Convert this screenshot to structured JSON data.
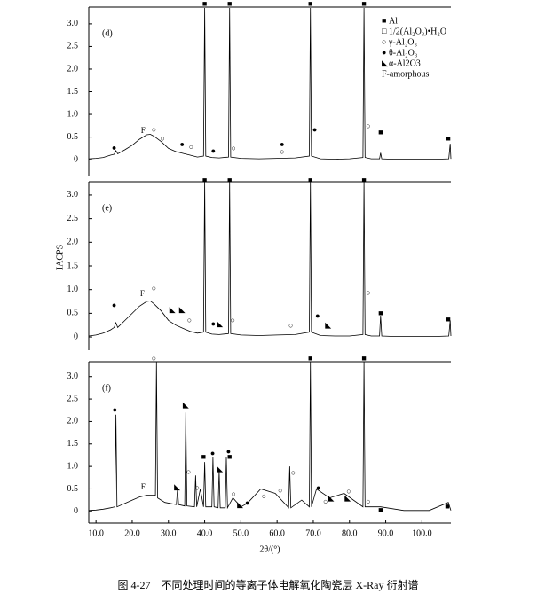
{
  "caption": "图 4-27　不同处理时间的等离子体电解氧化陶瓷层 X-Ray 衍射谱",
  "chart_data": [
    {
      "type": "line",
      "label": "(d)",
      "color": "#000000",
      "xlim": [
        8,
        108
      ],
      "ylim": [
        -0.35,
        3.37
      ],
      "yticks": [
        0,
        0.5,
        {
          "value": 1,
          "label": "1.0"
        },
        1.5,
        {
          "value": 2,
          "label": "2.0"
        },
        2.5,
        {
          "value": 3,
          "label": "3.0"
        }
      ],
      "x": [
        8,
        10,
        12,
        14,
        15,
        15.5,
        16,
        18,
        20,
        22,
        24,
        25,
        26,
        28,
        30,
        32,
        34,
        36,
        38,
        39.7,
        40,
        40.3,
        42,
        44,
        46.6,
        46.9,
        47.2,
        50,
        55,
        60,
        65,
        68.9,
        69.2,
        69.5,
        72,
        76,
        80,
        83.7,
        84,
        84.3,
        86,
        88.3,
        88.6,
        88.9,
        92,
        96,
        100,
        104,
        107.4,
        107.8,
        108
      ],
      "values": [
        0.02,
        0.03,
        0.05,
        0.1,
        0.12,
        0.2,
        0.13,
        0.22,
        0.32,
        0.45,
        0.55,
        0.56,
        0.52,
        0.4,
        0.25,
        0.18,
        0.14,
        0.1,
        0.06,
        0.08,
        3.35,
        0.08,
        0.05,
        0.04,
        0.06,
        3.35,
        0.06,
        0.03,
        0.02,
        0.03,
        0.04,
        0.08,
        3.35,
        0.08,
        0.02,
        0.01,
        0.02,
        0.05,
        3.35,
        0.05,
        0.02,
        0.02,
        0.15,
        0.02,
        0.01,
        0.01,
        0.01,
        0.01,
        0.02,
        0.35,
        0.02
      ],
      "annotations": [
        {
          "text": "■",
          "x": 40,
          "y": 3.43
        },
        {
          "text": "■",
          "x": 46.9,
          "y": 3.43
        },
        {
          "text": "■",
          "x": 69.2,
          "y": 3.43
        },
        {
          "text": "■",
          "x": 84,
          "y": 3.43
        },
        {
          "text": "●",
          "x": 15,
          "y": 0.25
        },
        {
          "text": "F",
          "x": 23,
          "y": 0.63
        },
        {
          "text": "○",
          "x": 26,
          "y": 0.65
        },
        {
          "text": "○",
          "x": 28.4,
          "y": 0.45
        },
        {
          "text": "●",
          "x": 33.8,
          "y": 0.33
        },
        {
          "text": "○",
          "x": 36.3,
          "y": 0.27
        },
        {
          "text": "●",
          "x": 42.4,
          "y": 0.18
        },
        {
          "text": "○",
          "x": 48,
          "y": 0.24
        },
        {
          "text": "●",
          "x": 61.4,
          "y": 0.33
        },
        {
          "text": "○",
          "x": 61.4,
          "y": 0.16
        },
        {
          "text": "●",
          "x": 70.4,
          "y": 0.65
        },
        {
          "text": "○",
          "x": 85.2,
          "y": 0.73
        },
        {
          "text": "■",
          "x": 88.6,
          "y": 0.59
        },
        {
          "text": "■",
          "x": 107.3,
          "y": 0.45
        }
      ],
      "legend": [
        {
          "symbol": "■",
          "label": "Al"
        },
        {
          "symbol": "□",
          "label": "1/2(Al₂O₃)•H₂O"
        },
        {
          "symbol": "○",
          "label": "γ-Al₂O₃"
        },
        {
          "symbol": "●",
          "label": "θ-Al₂O₃"
        },
        {
          "symbol": "◣",
          "label": "α-Al2O3"
        },
        {
          "symbol": "",
          "label": "F-amorphous"
        }
      ]
    },
    {
      "type": "line",
      "label": "(e)",
      "color": "#000000",
      "y_label": "IACPS",
      "xlim": [
        8,
        108
      ],
      "ylim": [
        -0.28,
        3.28
      ],
      "yticks": [
        0,
        0.5,
        {
          "value": 1,
          "label": "1.0"
        },
        1.5,
        {
          "value": 2,
          "label": "2.0"
        },
        2.5,
        {
          "value": 3,
          "label": "3.0"
        }
      ],
      "x": [
        8,
        10,
        12,
        14,
        15,
        15.5,
        16,
        18,
        20,
        22,
        24,
        25,
        26,
        28,
        30,
        32,
        34,
        36,
        38,
        39.7,
        40,
        40.3,
        42,
        44,
        46.6,
        46.9,
        47.2,
        50,
        55,
        60,
        65,
        68.9,
        69.2,
        69.5,
        72,
        76,
        80,
        83.7,
        84,
        84.3,
        86,
        88.3,
        88.6,
        88.9,
        92,
        96,
        100,
        104,
        107.4,
        107.8,
        108
      ],
      "values": [
        0.02,
        0.04,
        0.08,
        0.15,
        0.2,
        0.3,
        0.2,
        0.35,
        0.5,
        0.65,
        0.75,
        0.76,
        0.7,
        0.55,
        0.35,
        0.25,
        0.18,
        0.12,
        0.08,
        0.1,
        3.3,
        0.1,
        0.06,
        0.05,
        0.07,
        3.3,
        0.07,
        0.04,
        0.03,
        0.04,
        0.05,
        0.1,
        3.3,
        0.1,
        0.03,
        0.02,
        0.02,
        0.05,
        3.3,
        0.05,
        0.02,
        0.02,
        0.45,
        0.02,
        0.01,
        0.01,
        0.01,
        0.01,
        0.02,
        0.35,
        0.02
      ],
      "annotations": [
        {
          "text": "■",
          "x": 40,
          "y": 3.3
        },
        {
          "text": "■",
          "x": 46.9,
          "y": 3.3
        },
        {
          "text": "■",
          "x": 69.2,
          "y": 3.3
        },
        {
          "text": "■",
          "x": 84,
          "y": 3.3
        },
        {
          "text": "●",
          "x": 15,
          "y": 0.66
        },
        {
          "text": "F",
          "x": 22.8,
          "y": 0.9
        },
        {
          "text": "○",
          "x": 26,
          "y": 1.01
        },
        {
          "text": "◣",
          "x": 31.1,
          "y": 0.56
        },
        {
          "text": "◣",
          "x": 33.8,
          "y": 0.56
        },
        {
          "text": "○",
          "x": 35.8,
          "y": 0.34
        },
        {
          "text": "●",
          "x": 42.4,
          "y": 0.26
        },
        {
          "text": "◣",
          "x": 44.2,
          "y": 0.26
        },
        {
          "text": "○",
          "x": 47.8,
          "y": 0.34
        },
        {
          "text": "○",
          "x": 63.8,
          "y": 0.23
        },
        {
          "text": "●",
          "x": 71.2,
          "y": 0.43
        },
        {
          "text": "◣",
          "x": 74.1,
          "y": 0.24
        },
        {
          "text": "○",
          "x": 85.2,
          "y": 0.92
        },
        {
          "text": "■",
          "x": 88.6,
          "y": 0.49
        },
        {
          "text": "■",
          "x": 107.3,
          "y": 0.36
        }
      ]
    },
    {
      "type": "line",
      "label": "(f)",
      "color": "#000000",
      "x_label": "2θ/(°)",
      "xlim": [
        8,
        108
      ],
      "ylim": [
        -0.26,
        3.33
      ],
      "yticks": [
        0,
        0.5,
        {
          "value": 1,
          "label": "1.0"
        },
        1.5,
        {
          "value": 2,
          "label": "2.0"
        },
        2.5,
        {
          "value": 3,
          "label": "3.0"
        }
      ],
      "xticks": [
        {
          "value": 10,
          "label": "10.0"
        },
        {
          "value": 20,
          "label": "20.0"
        },
        {
          "value": 30,
          "label": "30.0"
        },
        {
          "value": 40,
          "label": "40.0"
        },
        {
          "value": 50,
          "label": "50.0"
        },
        {
          "value": 60,
          "label": "60.0"
        },
        {
          "value": 70,
          "label": "70.0"
        },
        {
          "value": 80,
          "label": "80.0"
        },
        {
          "value": 90,
          "label": "90.0"
        },
        {
          "value": 100,
          "label": "100.0"
        }
      ],
      "x": [
        8,
        10,
        12,
        14,
        15.2,
        15.5,
        15.8,
        18,
        20,
        22,
        24,
        26.4,
        26.7,
        27,
        29,
        32.2,
        32.5,
        32.8,
        34.5,
        34.8,
        35.1,
        37.2,
        37.5,
        37.8,
        38.8,
        39.7,
        40,
        40.3,
        42,
        42.3,
        42.6,
        43.7,
        44,
        44.3,
        45.7,
        46,
        46.3,
        47.8,
        50,
        51.8,
        55.5,
        59.5,
        63.2,
        63.5,
        63.8,
        66.8,
        68.9,
        69.2,
        69.5,
        70.9,
        74.5,
        78.5,
        83.7,
        84,
        84.3,
        88.6,
        95,
        102,
        107.3,
        108
      ],
      "values": [
        0.02,
        0.03,
        0.05,
        0.08,
        0.1,
        2.15,
        0.1,
        0.18,
        0.25,
        0.32,
        0.36,
        0.36,
        3.33,
        0.3,
        0.2,
        0.15,
        0.5,
        0.15,
        0.12,
        2.2,
        0.12,
        0.1,
        0.8,
        0.1,
        0.5,
        0.1,
        1.1,
        0.1,
        0.1,
        1.2,
        0.1,
        0.08,
        0.9,
        0.08,
        0.08,
        1.2,
        0.08,
        0.3,
        0.1,
        0.18,
        0.5,
        0.4,
        0.08,
        1.0,
        0.08,
        0.25,
        0.1,
        3.33,
        0.1,
        0.5,
        0.3,
        0.4,
        0.1,
        3.33,
        0.1,
        0.1,
        0.02,
        0.02,
        0.2,
        0.02
      ],
      "annotations": [
        {
          "text": "○",
          "x": 26,
          "y": 3.39
        },
        {
          "text": "■",
          "x": 69.2,
          "y": 3.39
        },
        {
          "text": "■",
          "x": 84,
          "y": 3.39
        },
        {
          "text": "●",
          "x": 15.2,
          "y": 2.25
        },
        {
          "text": "F",
          "x": 23,
          "y": 0.53
        },
        {
          "text": "◣",
          "x": 34.8,
          "y": 2.35
        },
        {
          "text": "◣",
          "x": 32.4,
          "y": 0.53
        },
        {
          "text": "○",
          "x": 35.6,
          "y": 0.87
        },
        {
          "text": "○",
          "x": 38,
          "y": 0.51
        },
        {
          "text": "■",
          "x": 39.7,
          "y": 1.2
        },
        {
          "text": "●",
          "x": 42.2,
          "y": 1.28
        },
        {
          "text": "◣",
          "x": 44.2,
          "y": 0.93
        },
        {
          "text": "■",
          "x": 46.9,
          "y": 1.2
        },
        {
          "text": "●",
          "x": 46.6,
          "y": 1.32
        },
        {
          "text": "○",
          "x": 48,
          "y": 0.37
        },
        {
          "text": "◣",
          "x": 49.8,
          "y": 0.14
        },
        {
          "text": "●",
          "x": 51.8,
          "y": 0.18
        },
        {
          "text": "○",
          "x": 56.4,
          "y": 0.32
        },
        {
          "text": "○",
          "x": 60.9,
          "y": 0.45
        },
        {
          "text": "○",
          "x": 64.5,
          "y": 0.85
        },
        {
          "text": "●",
          "x": 71.4,
          "y": 0.51
        },
        {
          "text": "○",
          "x": 73.4,
          "y": 0.2
        },
        {
          "text": "◣",
          "x": 74.9,
          "y": 0.28
        },
        {
          "text": "◣",
          "x": 79.5,
          "y": 0.28
        },
        {
          "text": "○",
          "x": 79.8,
          "y": 0.43
        },
        {
          "text": "○",
          "x": 85.2,
          "y": 0.2
        },
        {
          "text": "■",
          "x": 88.6,
          "y": 0.02
        },
        {
          "text": "■",
          "x": 107,
          "y": 0.1
        }
      ]
    }
  ]
}
